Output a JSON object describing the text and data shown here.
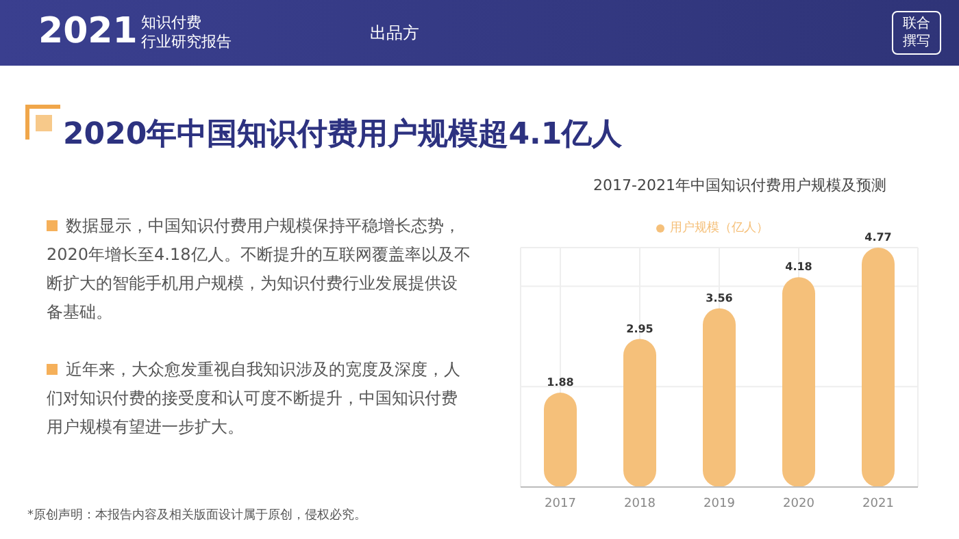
{
  "chart_data": {
    "type": "bar",
    "title": "2020年中国知识付费用户规模超4.1亿人",
    "subtitle": "2017-2021年中国知识付费用户规模及预测",
    "categories": [
      "2017",
      "2018",
      "2019",
      "2020",
      "2021"
    ],
    "series": [
      {
        "name": "用户规模（亿人）",
        "color": "#f5c07a",
        "values": [
          1.88,
          2.95,
          3.56,
          4.18,
          4.77
        ]
      }
    ],
    "data_labels": true,
    "grid": true,
    "legend": "top",
    "tick_labels": "x",
    "annotations": [
      "2021",
      "知识付费",
      "行业研究报告",
      "出品方",
      "联合撰写",
      "数据显示，中国知识付费用户规模保持平稳增长态势，2020年增长至4.18亿人。不断提升的互联网覆盖率以及不断扩大的智能手机用户规模，为知识付费行业发展提供设备基础。",
      "近年来，大众愈发重视自我知识涉及的宽度及深度，人们对知识付费的接受度和认可度不断提升，中国知识付费用户规模有望进一步扩大。",
      "*原创声明：本报告内容及相关版面设计属于原创，侵权必究。"
    ]
  }
}
